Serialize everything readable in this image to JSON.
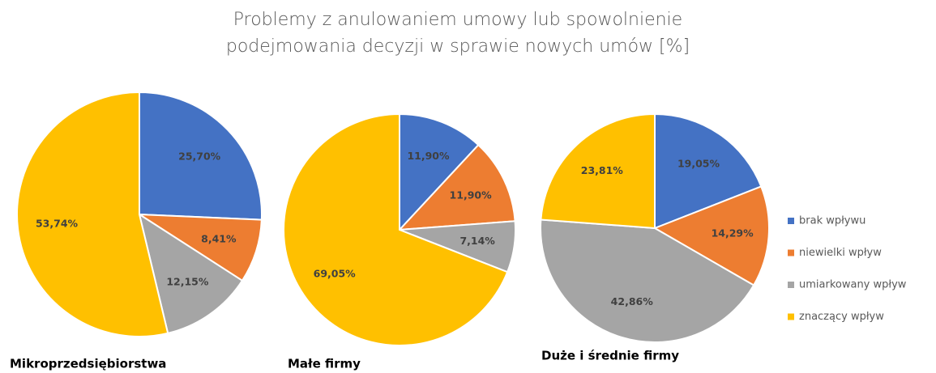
{
  "title": "Problemy z anulowaniem umowy lub spowolnienie podejmowania decyzji w sprawie nowych umów [%]",
  "categories": [
    "brak wpływu",
    "niewielki wpływ",
    "umiarkowany wpływ",
    "znaczący wpływ"
  ],
  "colors": [
    "#4472c4",
    "#ed7d31",
    "#a5a5a5",
    "#ffc000"
  ],
  "chart_data": [
    {
      "type": "pie",
      "title": "Mikroprzedsiębiorstwa",
      "values": [
        25.7,
        8.41,
        12.15,
        53.74
      ],
      "value_labels": [
        "25,70%",
        "8,41%",
        "12,15%",
        "53,74%"
      ]
    },
    {
      "type": "pie",
      "title": "Małe firmy",
      "values": [
        11.9,
        11.9,
        7.14,
        69.05
      ],
      "value_labels": [
        "11,90%",
        "11,90%",
        "7,14%",
        "69,05%"
      ]
    },
    {
      "type": "pie",
      "title": "Duże i średnie firmy",
      "values": [
        19.05,
        14.29,
        42.86,
        23.81
      ],
      "value_labels": [
        "19,05%",
        "14,29%",
        "42,86%",
        "23,81%"
      ]
    }
  ]
}
